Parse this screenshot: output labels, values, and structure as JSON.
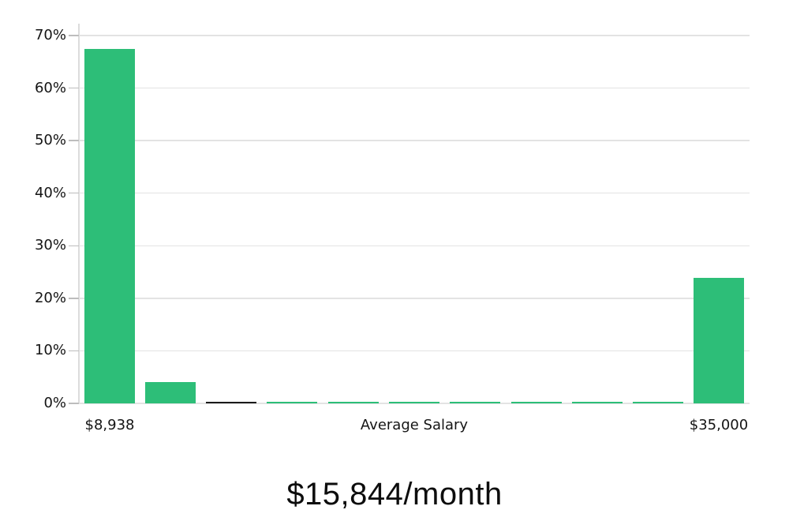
{
  "chart_data": {
    "type": "bar",
    "title": "$15,844/month",
    "xlabel": "Average Salary",
    "ylabel": "",
    "categories": [
      "$8,938",
      "",
      "",
      "",
      "",
      "",
      "",
      "",
      "",
      "",
      "$35,000"
    ],
    "values": [
      67.4,
      4.1,
      0.3,
      0.25,
      0.25,
      0.25,
      0.25,
      0.25,
      0.25,
      0.25,
      23.9
    ],
    "bar_colors": [
      "#2dbe78",
      "#2dbe78",
      "#1a1a1a",
      "#2dbe78",
      "#2dbe78",
      "#2dbe78",
      "#2dbe78",
      "#2dbe78",
      "#2dbe78",
      "#2dbe78",
      "#2dbe78"
    ],
    "yticks": [
      0,
      10,
      20,
      30,
      40,
      50,
      60,
      70
    ],
    "ytick_labels": [
      "0%",
      "10%",
      "20%",
      "30%",
      "40%",
      "50%",
      "60%",
      "70%"
    ],
    "ylim": [
      0,
      70
    ],
    "grid": true,
    "legend": "none",
    "colors": {
      "bar_green": "#2dbe78",
      "bar_dark": "#1a1a1a",
      "gridline": "#e3e3e3",
      "tick_mark": "#bdbdbd",
      "axis_line": "#dcdcdc",
      "label_text": "#141414",
      "background": "#ffffff"
    }
  }
}
